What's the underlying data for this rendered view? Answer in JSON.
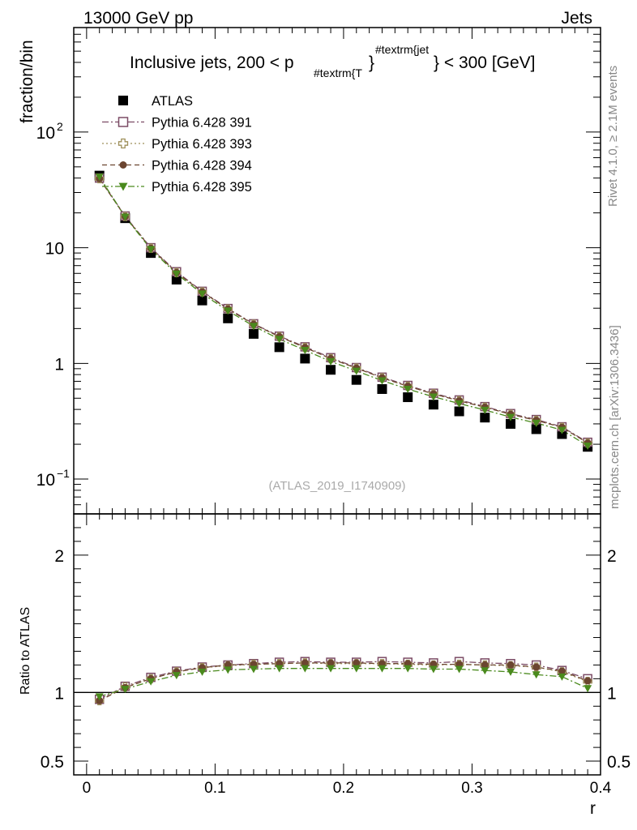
{
  "header": {
    "left": "13000 GeV pp",
    "right": "Jets",
    "side_top": "Rivet 4.1.0, ≥ 2.1M events",
    "side_bottom": "mcplots.cern.ch [arXiv:1306.3436]"
  },
  "chart_data": [
    {
      "type": "scatter",
      "panel": "main",
      "title_main": "Inclusive jets, 200 < p",
      "title_sub": "#textrm{T",
      "title_sup": "#textrm{jet",
      "title_brace": "}",
      "title_end": "} < 300 [GeV]",
      "ylabel": "fraction/bin",
      "yscale": "log",
      "ylim": [
        0.05,
        800
      ],
      "xlim": [
        -0.01,
        0.4
      ],
      "y_tick_labels": [
        {
          "value": 100,
          "base": "10",
          "exp": "2"
        },
        {
          "value": 10,
          "base": "10",
          "exp": ""
        },
        {
          "value": 1,
          "base": "1",
          "exp": ""
        },
        {
          "value": 0.1,
          "base": "10",
          "exp": "−1"
        }
      ],
      "watermark": "(ATLAS_2019_I1740909)",
      "x": [
        0.01,
        0.03,
        0.05,
        0.07,
        0.09,
        0.11,
        0.13,
        0.15,
        0.17,
        0.19,
        0.21,
        0.23,
        0.25,
        0.27,
        0.29,
        0.31,
        0.33,
        0.35,
        0.37,
        0.39
      ],
      "series": [
        {
          "name": "ATLAS",
          "color": "#000000",
          "marker": "square-filled",
          "line": "none",
          "values": [
            42,
            18,
            9.0,
            5.3,
            3.5,
            2.45,
            1.8,
            1.38,
            1.1,
            0.88,
            0.72,
            0.6,
            0.51,
            0.44,
            0.385,
            0.34,
            0.3,
            0.27,
            0.245,
            0.19
          ]
        },
        {
          "name": "Pythia 6.428 391",
          "color": "#7b4b65",
          "marker": "square-open",
          "line": "dashdot",
          "values": [
            40,
            18.8,
            10.0,
            6.2,
            4.2,
            2.98,
            2.2,
            1.72,
            1.39,
            1.12,
            0.92,
            0.76,
            0.645,
            0.552,
            0.483,
            0.423,
            0.368,
            0.327,
            0.283,
            0.208
          ]
        },
        {
          "name": "Pythia 6.428 393",
          "color": "#9e8f5a",
          "marker": "cross-open",
          "line": "dotted",
          "values": [
            39.5,
            18.6,
            9.9,
            6.1,
            4.15,
            2.95,
            2.18,
            1.7,
            1.37,
            1.1,
            0.91,
            0.75,
            0.635,
            0.545,
            0.475,
            0.418,
            0.363,
            0.322,
            0.28,
            0.205
          ]
        },
        {
          "name": "Pythia 6.428 394",
          "color": "#6b4530",
          "marker": "circle-filled",
          "line": "dashed",
          "values": [
            39.5,
            18.6,
            9.9,
            6.1,
            4.15,
            2.95,
            2.18,
            1.7,
            1.37,
            1.1,
            0.91,
            0.75,
            0.635,
            0.545,
            0.475,
            0.418,
            0.363,
            0.322,
            0.28,
            0.205
          ]
        },
        {
          "name": "Pythia 6.428 395",
          "color": "#4a8a1d",
          "marker": "triangle-down-filled",
          "line": "dashdot",
          "values": [
            41,
            18.5,
            9.7,
            5.95,
            4.0,
            2.85,
            2.1,
            1.62,
            1.3,
            1.04,
            0.86,
            0.71,
            0.6,
            0.515,
            0.45,
            0.395,
            0.343,
            0.305,
            0.265,
            0.194
          ]
        }
      ]
    },
    {
      "type": "scatter",
      "panel": "ratio",
      "ylabel": "Ratio to ATLAS",
      "xlabel": "r",
      "ylim": [
        0.4,
        2.3
      ],
      "xlim": [
        -0.01,
        0.4
      ],
      "y_ticks": [
        0.5,
        1,
        2
      ],
      "y_tick_labels": [
        "0.5",
        "1",
        "2"
      ],
      "x_ticks": [
        0,
        0.1,
        0.2,
        0.3,
        0.4
      ],
      "x_tick_labels": [
        "0",
        "0.1",
        "0.2",
        "0.3",
        "0.4"
      ],
      "reference_line": 1,
      "x": [
        0.01,
        0.03,
        0.05,
        0.07,
        0.09,
        0.11,
        0.13,
        0.15,
        0.17,
        0.19,
        0.21,
        0.23,
        0.25,
        0.27,
        0.29,
        0.31,
        0.33,
        0.35,
        0.37,
        0.39
      ],
      "series": [
        {
          "name": "Pythia 6.428 391",
          "color": "#7b4b65",
          "marker": "square-open",
          "line": "dashdot",
          "values": [
            0.95,
            1.045,
            1.11,
            1.155,
            1.185,
            1.2,
            1.21,
            1.22,
            1.225,
            1.22,
            1.22,
            1.225,
            1.22,
            1.215,
            1.225,
            1.215,
            1.21,
            1.2,
            1.16,
            1.1
          ]
        },
        {
          "name": "Pythia 6.428 393",
          "color": "#9e8f5a",
          "marker": "cross-open",
          "line": "dotted",
          "values": [
            0.94,
            1.04,
            1.1,
            1.15,
            1.18,
            1.195,
            1.205,
            1.21,
            1.215,
            1.21,
            1.21,
            1.21,
            1.205,
            1.2,
            1.205,
            1.2,
            1.195,
            1.185,
            1.15,
            1.08
          ]
        },
        {
          "name": "Pythia 6.428 394",
          "color": "#6b4530",
          "marker": "circle-filled",
          "line": "dashed",
          "values": [
            0.94,
            1.035,
            1.1,
            1.15,
            1.18,
            1.2,
            1.205,
            1.21,
            1.215,
            1.215,
            1.215,
            1.21,
            1.21,
            1.205,
            1.205,
            1.2,
            1.2,
            1.185,
            1.155,
            1.085
          ]
        },
        {
          "name": "Pythia 6.428 395",
          "color": "#4a8a1d",
          "marker": "triangle-down-filled",
          "line": "dashdot",
          "values": [
            0.97,
            1.025,
            1.08,
            1.125,
            1.15,
            1.165,
            1.17,
            1.175,
            1.175,
            1.175,
            1.175,
            1.175,
            1.175,
            1.17,
            1.17,
            1.16,
            1.15,
            1.13,
            1.115,
            1.03
          ]
        }
      ]
    }
  ]
}
